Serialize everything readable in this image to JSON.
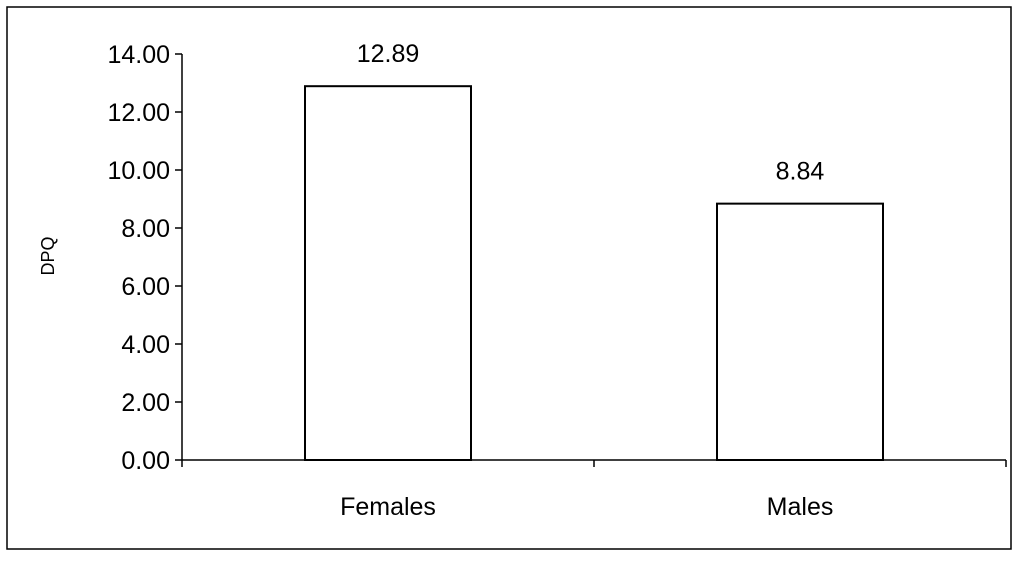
{
  "chart_data": {
    "type": "bar",
    "title": "",
    "xlabel": "",
    "ylabel": "DPQ",
    "categories": [
      "Females",
      "Males"
    ],
    "values": [
      12.89,
      8.84
    ],
    "data_labels": [
      "12.89",
      "8.84"
    ],
    "ylim": [
      0,
      14
    ],
    "yticks": [
      0,
      2,
      4,
      6,
      8,
      10,
      12,
      14
    ],
    "ytick_labels": [
      "0.00",
      "2.00",
      "4.00",
      "6.00",
      "8.00",
      "10.00",
      "12.00",
      "14.00"
    ],
    "grid": false,
    "legend": "none",
    "bar_fill": "#ffffff",
    "bar_stroke": "#000000"
  }
}
